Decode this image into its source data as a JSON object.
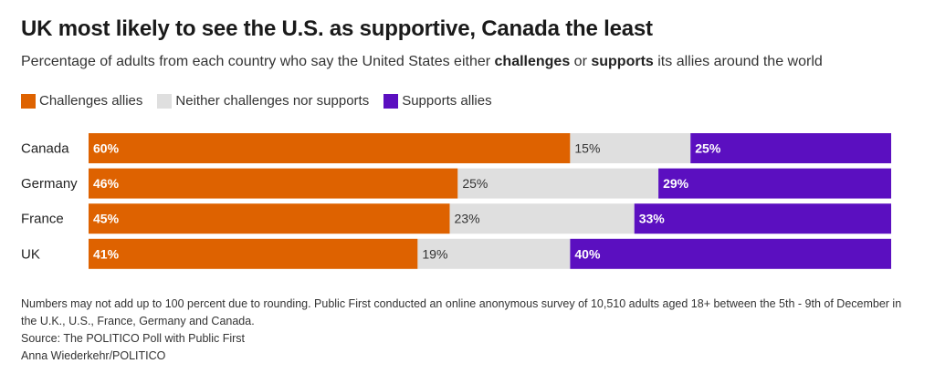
{
  "header": {
    "title": "UK most likely to see the U.S. as supportive, Canada the least",
    "subtitle_parts": [
      {
        "text": "Percentage of adults from each country who say the United States either ",
        "bold": false
      },
      {
        "text": "challenges",
        "bold": true
      },
      {
        "text": " or ",
        "bold": false
      },
      {
        "text": "supports",
        "bold": true
      },
      {
        "text": " its allies around the world",
        "bold": false
      }
    ]
  },
  "chart_data": {
    "type": "bar",
    "orientation": "horizontal",
    "stacked": true,
    "title": "UK most likely to see the U.S. as supportive, Canada the least",
    "subtitle": "Percentage of adults from each country who say the United States either challenges or supports its allies around the world",
    "xlabel": "",
    "ylabel": "",
    "xlim": [
      0,
      100
    ],
    "grid": false,
    "legend_position": "top-left",
    "categories": [
      "Canada",
      "Germany",
      "France",
      "UK"
    ],
    "series": [
      {
        "name": "Challenges allies",
        "color": "#DE6200",
        "label_color": "#ffffff",
        "values": [
          60,
          46,
          45,
          41
        ]
      },
      {
        "name": "Neither challenges nor supports",
        "color": "#DFDFDF",
        "label_color": "#333333",
        "values": [
          15,
          25,
          23,
          19
        ]
      },
      {
        "name": "Supports allies",
        "color": "#5B0FC0",
        "label_color": "#ffffff",
        "values": [
          25,
          29,
          33,
          40
        ]
      }
    ]
  },
  "footer": {
    "note": "Numbers may not add up to 100 percent due to rounding. Public First conducted an online anonymous survey of 10,510 adults aged 18+ between the 5th - 9th of December in the U.K., U.S., France, Germany and Canada.",
    "source": "Source: The POLITICO Poll with Public First",
    "credit": "Anna Wiederkehr/POLITICO"
  }
}
